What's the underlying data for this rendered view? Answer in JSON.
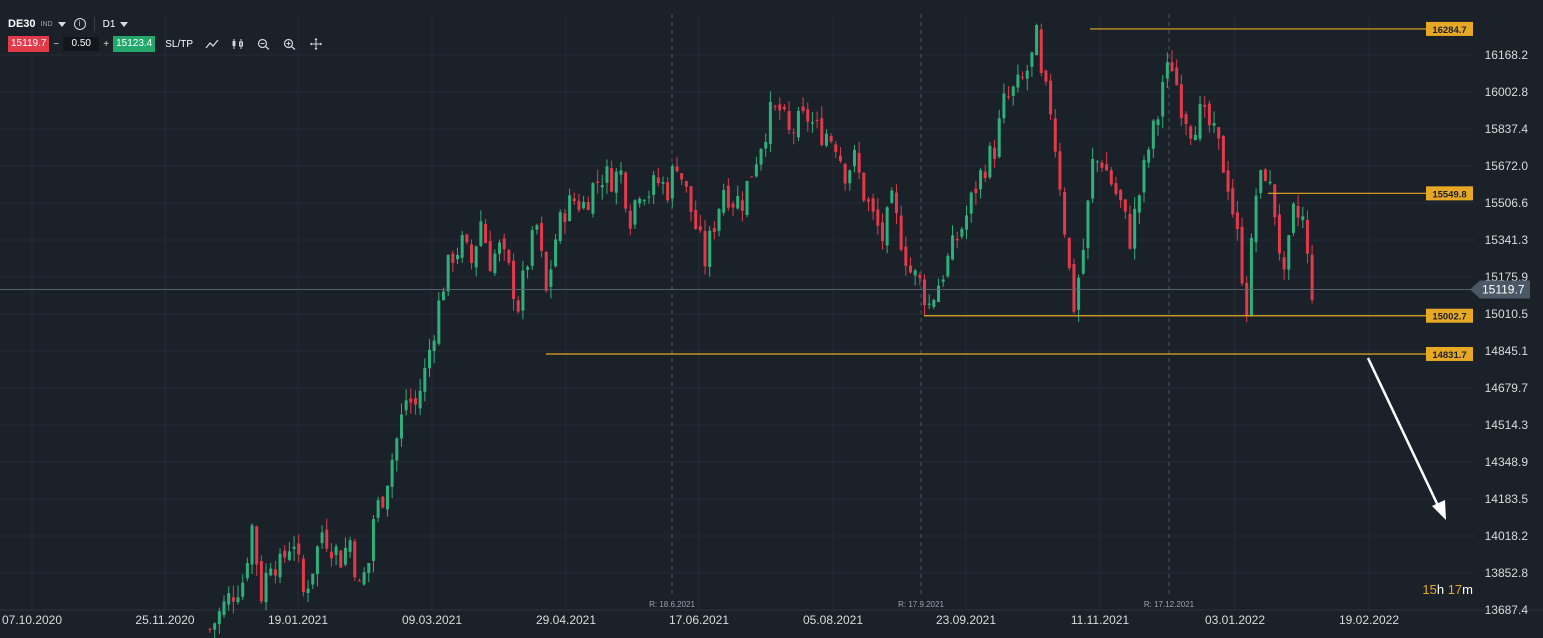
{
  "header": {
    "symbol": "DE30",
    "instrument_type": "IND",
    "timeframe": "D1",
    "bid": "15119.7",
    "quantity": "0.50",
    "ask": "15123.4",
    "sltp": "SL/TP",
    "minus": "−",
    "plus": "+",
    "info_icon": "i",
    "icons": [
      "line-chart-icon",
      "candles-icon",
      "zoom-out-icon",
      "zoom-in-icon",
      "crosshair-icon"
    ]
  },
  "countdown": {
    "hours": "15",
    "h_unit": "h",
    "minutes": "17",
    "m_unit": "m"
  },
  "colors": {
    "background": "#1b2129",
    "up": "#2fb07a",
    "down": "#e23a4b",
    "level": "#e6a825",
    "grid": "#252c35"
  },
  "chart_data": {
    "type": "candlestick",
    "symbol": "DE30",
    "timeframe": "D1",
    "current_price": 15119.7,
    "y_ticks": [
      "16168.2",
      "16002.8",
      "15837.4",
      "15672.0",
      "15506.6",
      "15341.3",
      "15175.9",
      "15010.5",
      "14845.1",
      "14679.7",
      "14514.3",
      "14348.9",
      "14183.5",
      "14018.2",
      "13852.8",
      "13687.4"
    ],
    "x_ticks": [
      "07.10.2020",
      "25.11.2020",
      "19.01.2021",
      "09.03.2021",
      "29.04.2021",
      "17.06.2021",
      "05.08.2021",
      "23.09.2021",
      "11.11.2021",
      "03.01.2022",
      "19.02.2022"
    ],
    "rollovers": [
      "R: 18.6.2021",
      "R: 17.9.2021",
      "R: 17.12.2021"
    ],
    "levels": [
      {
        "label": "16284.7",
        "value": 16284.7
      },
      {
        "label": "15549.8",
        "value": 15549.8
      },
      {
        "label": "15002.7",
        "value": 15002.7
      },
      {
        "label": "14831.7",
        "value": 14831.7
      }
    ],
    "current_price_label": "15119.7",
    "ylim": [
      13687.4,
      16300
    ],
    "arrow": {
      "from": "14831.7",
      "to": "14100",
      "direction": "down"
    },
    "path": [
      [
        0,
        13600
      ],
      [
        4,
        13740
      ],
      [
        7,
        13820
      ],
      [
        9,
        14060
      ],
      [
        11,
        13760
      ],
      [
        13,
        13920
      ],
      [
        15,
        13880
      ],
      [
        17,
        13980
      ],
      [
        18,
        14000
      ],
      [
        20,
        13760
      ],
      [
        22,
        13880
      ],
      [
        24,
        14040
      ],
      [
        26,
        13980
      ],
      [
        28,
        13920
      ],
      [
        30,
        14000
      ],
      [
        32,
        13780
      ],
      [
        34,
        13900
      ],
      [
        35,
        14100
      ],
      [
        37,
        14200
      ],
      [
        40,
        14450
      ],
      [
        42,
        14630
      ],
      [
        44,
        14600
      ],
      [
        46,
        14750
      ],
      [
        48,
        14950
      ],
      [
        50,
        15150
      ],
      [
        52,
        15280
      ],
      [
        54,
        15320
      ],
      [
        56,
        15240
      ],
      [
        58,
        15430
      ],
      [
        60,
        15250
      ],
      [
        62,
        15300
      ],
      [
        64,
        15200
      ],
      [
        66,
        15050
      ],
      [
        68,
        15250
      ],
      [
        70,
        15400
      ],
      [
        72,
        15100
      ],
      [
        74,
        15350
      ],
      [
        76,
        15480
      ],
      [
        78,
        15520
      ],
      [
        80,
        15500
      ],
      [
        82,
        15580
      ],
      [
        84,
        15630
      ],
      [
        86,
        15620
      ],
      [
        88,
        15640
      ],
      [
        90,
        15450
      ],
      [
        92,
        15580
      ],
      [
        94,
        15560
      ],
      [
        96,
        15600
      ],
      [
        98,
        15570
      ],
      [
        100,
        15700
      ],
      [
        102,
        15550
      ],
      [
        104,
        15400
      ],
      [
        106,
        15250
      ],
      [
        108,
        15420
      ],
      [
        110,
        15580
      ],
      [
        112,
        15520
      ],
      [
        114,
        15520
      ],
      [
        116,
        15650
      ],
      [
        118,
        15780
      ],
      [
        120,
        15900
      ],
      [
        122,
        15920
      ],
      [
        124,
        15810
      ],
      [
        126,
        15860
      ],
      [
        128,
        15890
      ],
      [
        130,
        15830
      ],
      [
        132,
        15820
      ],
      [
        134,
        15780
      ],
      [
        136,
        15650
      ],
      [
        138,
        15700
      ],
      [
        140,
        15550
      ],
      [
        142,
        15440
      ],
      [
        144,
        15350
      ],
      [
        146,
        15500
      ],
      [
        148,
        15350
      ],
      [
        150,
        15200
      ],
      [
        152,
        15150
      ],
      [
        154,
        15050
      ],
      [
        156,
        15150
      ],
      [
        158,
        15250
      ],
      [
        160,
        15350
      ],
      [
        162,
        15450
      ],
      [
        164,
        15580
      ],
      [
        166,
        15680
      ],
      [
        168,
        15750
      ],
      [
        170,
        15950
      ],
      [
        172,
        16000
      ],
      [
        174,
        16050
      ],
      [
        176,
        16150
      ],
      [
        177,
        16240
      ],
      [
        178,
        16050
      ],
      [
        180,
        15930
      ],
      [
        182,
        15600
      ],
      [
        184,
        15200
      ],
      [
        185,
        15050
      ],
      [
        187,
        15300
      ],
      [
        189,
        15680
      ],
      [
        191,
        15700
      ],
      [
        193,
        15600
      ],
      [
        195,
        15500
      ],
      [
        197,
        15350
      ],
      [
        199,
        15550
      ],
      [
        201,
        15750
      ],
      [
        203,
        15900
      ],
      [
        204,
        16050
      ],
      [
        206,
        16130
      ],
      [
        208,
        15950
      ],
      [
        210,
        15850
      ],
      [
        212,
        15900
      ],
      [
        214,
        15850
      ],
      [
        216,
        15750
      ],
      [
        218,
        15600
      ],
      [
        220,
        15350
      ],
      [
        222,
        15050
      ],
      [
        224,
        15550
      ],
      [
        226,
        15650
      ],
      [
        228,
        15470
      ],
      [
        230,
        15150
      ],
      [
        232,
        15450
      ],
      [
        234,
        15430
      ],
      [
        235,
        15250
      ],
      [
        236,
        15120
      ]
    ]
  }
}
